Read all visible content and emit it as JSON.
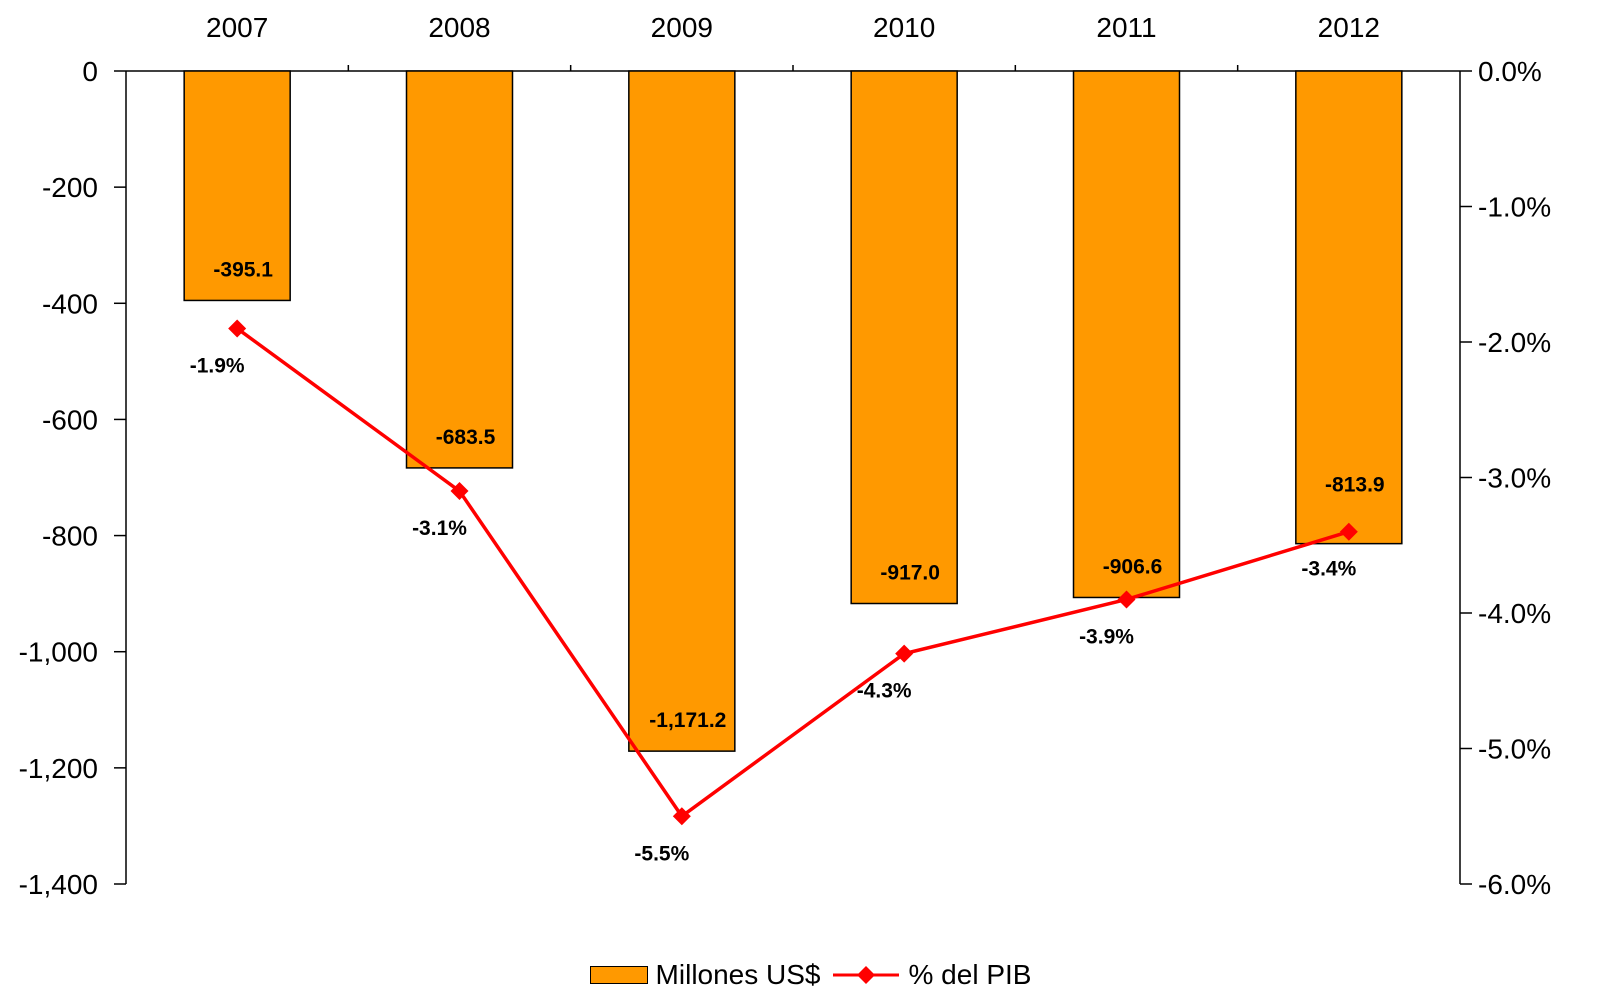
{
  "chart_data": {
    "type": "bar",
    "categories": [
      "2007",
      "2008",
      "2009",
      "2010",
      "2011",
      "2012"
    ],
    "series": [
      {
        "name": "Millones US$",
        "type": "bar",
        "axis": "left",
        "values": [
          -395.1,
          -683.5,
          -1171.2,
          -917.0,
          -906.6,
          -813.9
        ],
        "labels": [
          "-395.1",
          "-683.5",
          "-1,171.2",
          "-917.0",
          "-906.6",
          "-813.9"
        ],
        "color": "#FF9900"
      },
      {
        "name": "% del PIB",
        "type": "line",
        "axis": "right",
        "values": [
          -1.9,
          -3.1,
          -5.5,
          -4.3,
          -3.9,
          -3.4
        ],
        "labels": [
          "-1.9%",
          "-3.1%",
          "-5.5%",
          "-4.3%",
          "-3.9%",
          "-3.4%"
        ],
        "color": "#FF0000",
        "marker": "diamond"
      }
    ],
    "left_axis": {
      "ylim": [
        -1400,
        0
      ],
      "ticks": [
        0,
        -200,
        -400,
        -600,
        -800,
        -1000,
        -1200,
        -1400
      ],
      "tick_labels": [
        "0",
        "-200",
        "-400",
        "-600",
        "-800",
        "-1,000",
        "-1,200",
        "-1,400"
      ]
    },
    "right_axis": {
      "ylim": [
        -6.0,
        0.0
      ],
      "ticks": [
        0,
        -1,
        -2,
        -3,
        -4,
        -5,
        -6
      ],
      "tick_labels": [
        "0.0%",
        "-1.0%",
        "-2.0%",
        "-3.0%",
        "-4.0%",
        "-5.0%",
        "-6.0%"
      ]
    },
    "category_axis_position": "top",
    "legend_position": "bottom",
    "grid": false
  },
  "legend": {
    "bar_label": "Millones US$",
    "line_label": "% del PIB"
  }
}
